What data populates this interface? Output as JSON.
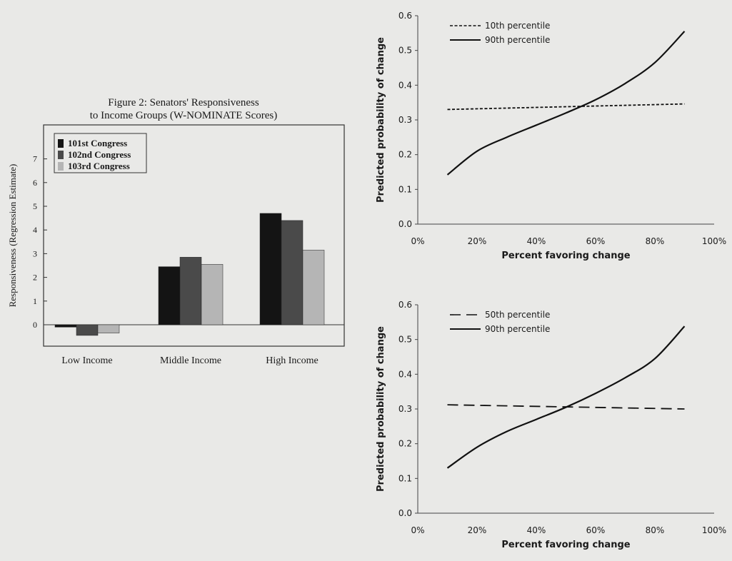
{
  "chart_data": [
    {
      "type": "bar",
      "title": "Figure 2: Senators' Responsiveness",
      "subtitle": "to Income Groups (W-NOMINATE Scores)",
      "xlabel": "",
      "ylabel": "Responsiveness (Regression Estimate)",
      "categories": [
        "Low Income",
        "Middle Income",
        "High Income"
      ],
      "ylim": [
        -1,
        8
      ],
      "yticks": [
        "0",
        "1",
        "2",
        "3",
        "4",
        "5",
        "6",
        "7"
      ],
      "grid": false,
      "legend_position": "top-left",
      "series": [
        {
          "name": "101st Congress",
          "color": "#141414",
          "values": [
            -0.1,
            2.45,
            4.7
          ]
        },
        {
          "name": "102nd Congress",
          "color": "#4a4a4a",
          "values": [
            -0.45,
            2.85,
            4.4
          ]
        },
        {
          "name": "103rd Congress",
          "color": "#b5b5b5",
          "values": [
            -0.35,
            2.55,
            3.15
          ]
        }
      ]
    },
    {
      "type": "line",
      "title": "",
      "xlabel": "Percent favoring change",
      "ylabel": "Predicted probability of change",
      "xlim": [
        0,
        100
      ],
      "ylim": [
        0,
        0.6
      ],
      "xticks": [
        "0%",
        "20%",
        "40%",
        "60%",
        "80%",
        "100%"
      ],
      "yticks": [
        "0.0",
        "0.1",
        "0.2",
        "0.3",
        "0.4",
        "0.5",
        "0.6"
      ],
      "grid": false,
      "legend_position": "top-left",
      "series": [
        {
          "name": "10th percentile",
          "style": "dotted",
          "x": [
            10,
            30,
            50,
            70,
            90
          ],
          "y": [
            0.33,
            0.334,
            0.338,
            0.342,
            0.346
          ]
        },
        {
          "name": "90th percentile",
          "style": "solid",
          "x": [
            10,
            20,
            30,
            40,
            50,
            60,
            70,
            80,
            90
          ],
          "y": [
            0.142,
            0.21,
            0.25,
            0.285,
            0.32,
            0.358,
            0.405,
            0.465,
            0.555
          ]
        }
      ]
    },
    {
      "type": "line",
      "title": "",
      "xlabel": "Percent favoring change",
      "ylabel": "Predicted probability of change",
      "xlim": [
        0,
        100
      ],
      "ylim": [
        0,
        0.6
      ],
      "xticks": [
        "0%",
        "20%",
        "40%",
        "60%",
        "80%",
        "100%"
      ],
      "yticks": [
        "0.0",
        "0.1",
        "0.2",
        "0.3",
        "0.4",
        "0.5",
        "0.6"
      ],
      "grid": false,
      "legend_position": "top-left",
      "series": [
        {
          "name": "50th percentile",
          "style": "dashed",
          "x": [
            10,
            30,
            50,
            70,
            90
          ],
          "y": [
            0.312,
            0.309,
            0.306,
            0.303,
            0.3
          ]
        },
        {
          "name": "90th percentile",
          "style": "solid",
          "x": [
            10,
            20,
            30,
            40,
            50,
            60,
            70,
            80,
            90
          ],
          "y": [
            0.13,
            0.19,
            0.235,
            0.27,
            0.305,
            0.345,
            0.39,
            0.445,
            0.538
          ]
        }
      ]
    }
  ]
}
